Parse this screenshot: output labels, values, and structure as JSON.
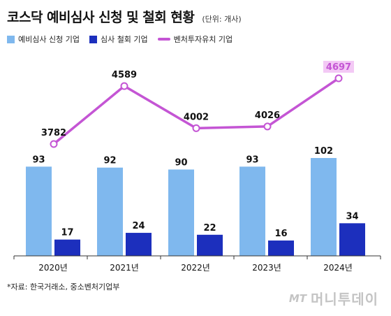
{
  "header": {
    "title": "코스닥 예비심사 신청 및 철회 현황",
    "unit": "(단위: 개사)"
  },
  "colors": {
    "application": "#7fb8ee",
    "withdrawal": "#1c2fbd",
    "venture": "#c455d4",
    "venture_label_bg": "#f3c9f5",
    "axis": "#333333"
  },
  "chart_data": {
    "type": "bar",
    "categories": [
      "2020년",
      "2021년",
      "2022년",
      "2023년",
      "2024년"
    ],
    "series": [
      {
        "name": "예비심사 신청 기업",
        "type": "bar",
        "values": [
          93,
          92,
          90,
          93,
          102
        ]
      },
      {
        "name": "심사 철회 기업",
        "type": "bar",
        "values": [
          17,
          24,
          22,
          16,
          34
        ]
      },
      {
        "name": "벤처투자유치 기업",
        "type": "line",
        "values": [
          3782,
          4589,
          4002,
          4026,
          4697
        ]
      }
    ],
    "ylabel": "",
    "xlabel": "",
    "grid": false,
    "legend_position": "top-left"
  },
  "footer": {
    "source": "*자료: 한국거래소, 중소벤처기업부",
    "brand_mt": "MT",
    "brand_name": "머니투데이"
  }
}
